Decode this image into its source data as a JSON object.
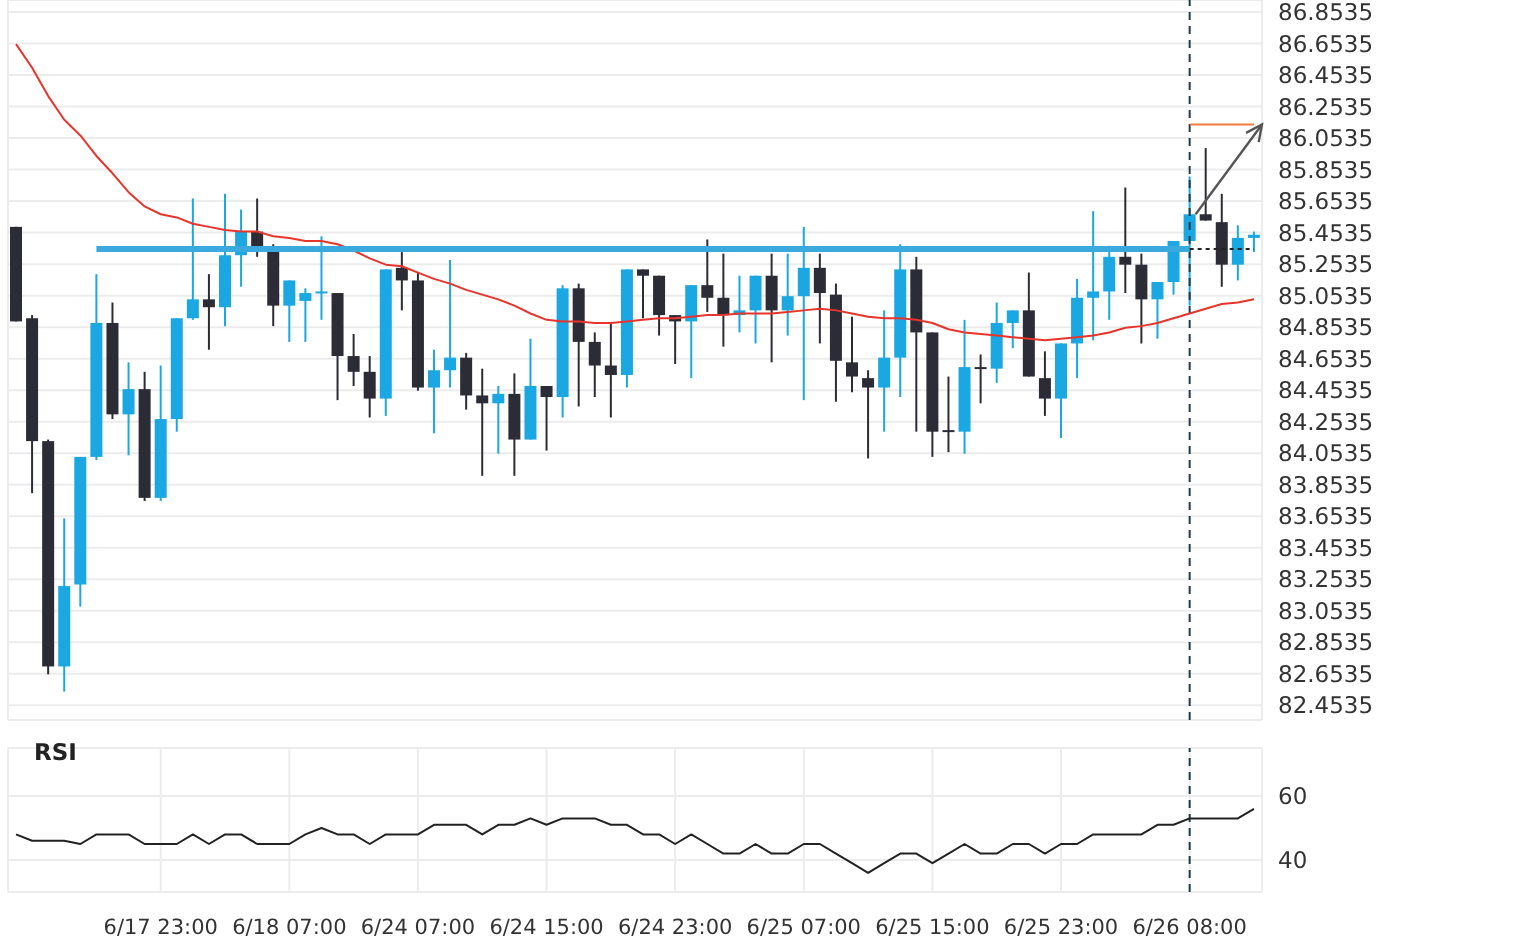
{
  "chart_data": [
    {
      "type": "candlestick",
      "categories": [
        null,
        null,
        null,
        null,
        null,
        null,
        null,
        null,
        null,
        "6/17 23:00",
        null,
        null,
        null,
        null,
        null,
        null,
        null,
        "6/18 07:00",
        null,
        null,
        null,
        null,
        null,
        null,
        null,
        "6/24 07:00",
        null,
        null,
        null,
        null,
        null,
        null,
        null,
        "6/24 15:00",
        null,
        null,
        null,
        null,
        null,
        null,
        null,
        "6/24 23:00",
        null,
        null,
        null,
        null,
        null,
        null,
        null,
        "6/25 07:00",
        null,
        null,
        null,
        null,
        null,
        null,
        null,
        "6/25 15:00",
        null,
        null,
        null,
        null,
        null,
        null,
        null,
        "6/25 23:00",
        null,
        null,
        null,
        null,
        null,
        null,
        null,
        "6/26 08:00",
        null,
        null,
        null,
        null
      ],
      "ohlc": [
        [
          85.49,
          85.49,
          84.89,
          84.89
        ],
        [
          84.91,
          84.93,
          83.8,
          84.13
        ],
        [
          84.13,
          84.14,
          82.65,
          82.7
        ],
        [
          82.7,
          83.64,
          82.54,
          83.21
        ],
        [
          83.22,
          84.03,
          83.08,
          84.03
        ],
        [
          84.03,
          85.19,
          84.01,
          84.88
        ],
        [
          84.88,
          85.01,
          84.27,
          84.3
        ],
        [
          84.3,
          84.63,
          84.04,
          84.46
        ],
        [
          84.46,
          84.57,
          83.75,
          83.77
        ],
        [
          83.77,
          84.61,
          83.75,
          84.27
        ],
        [
          84.27,
          84.91,
          84.19,
          84.91
        ],
        [
          84.91,
          85.67,
          84.9,
          85.03
        ],
        [
          85.03,
          85.19,
          84.71,
          84.98
        ],
        [
          84.98,
          85.7,
          84.86,
          85.31
        ],
        [
          85.31,
          85.6,
          85.11,
          85.46
        ],
        [
          85.46,
          85.67,
          85.3,
          85.36
        ],
        [
          85.36,
          85.38,
          84.86,
          84.99
        ],
        [
          84.99,
          85.15,
          84.76,
          85.15
        ],
        [
          85.02,
          85.1,
          84.76,
          85.07
        ],
        [
          85.07,
          85.43,
          84.9,
          85.08
        ],
        [
          85.07,
          85.07,
          84.39,
          84.67
        ],
        [
          84.67,
          84.81,
          84.48,
          84.57
        ],
        [
          84.57,
          84.67,
          84.28,
          84.4
        ],
        [
          84.4,
          85.22,
          84.29,
          85.22
        ],
        [
          85.23,
          85.33,
          84.96,
          85.15
        ],
        [
          85.15,
          85.2,
          84.45,
          84.47
        ],
        [
          84.47,
          84.71,
          84.18,
          84.58
        ],
        [
          84.58,
          85.28,
          84.47,
          84.66
        ],
        [
          84.66,
          84.69,
          84.33,
          84.42
        ],
        [
          84.42,
          84.59,
          83.91,
          84.37
        ],
        [
          84.37,
          84.48,
          84.05,
          84.43
        ],
        [
          84.43,
          84.56,
          83.91,
          84.14
        ],
        [
          84.14,
          84.78,
          84.14,
          84.48
        ],
        [
          84.48,
          84.48,
          84.07,
          84.41
        ],
        [
          84.41,
          85.12,
          84.28,
          85.1
        ],
        [
          85.1,
          85.13,
          84.35,
          84.76
        ],
        [
          84.76,
          84.82,
          84.41,
          84.61
        ],
        [
          84.61,
          84.88,
          84.28,
          84.55
        ],
        [
          84.55,
          85.22,
          84.47,
          85.22
        ],
        [
          85.22,
          85.22,
          84.91,
          85.18
        ],
        [
          85.18,
          85.18,
          84.8,
          84.93
        ],
        [
          84.93,
          84.93,
          84.62,
          84.89
        ],
        [
          84.89,
          85.12,
          84.53,
          85.12
        ],
        [
          85.12,
          85.41,
          84.95,
          85.04
        ],
        [
          85.04,
          85.32,
          84.73,
          84.93
        ],
        [
          84.93,
          85.18,
          84.82,
          84.96
        ],
        [
          84.96,
          85.18,
          84.75,
          85.18
        ],
        [
          85.18,
          85.32,
          84.63,
          84.96
        ],
        [
          84.96,
          85.32,
          84.8,
          85.05
        ],
        [
          85.05,
          85.49,
          84.39,
          85.23
        ],
        [
          85.23,
          85.32,
          84.75,
          85.07
        ],
        [
          85.06,
          85.13,
          84.38,
          84.64
        ],
        [
          84.63,
          84.92,
          84.44,
          84.54
        ],
        [
          84.53,
          84.58,
          84.02,
          84.47
        ],
        [
          84.47,
          84.96,
          84.19,
          84.66
        ],
        [
          84.66,
          85.38,
          84.41,
          85.22
        ],
        [
          85.22,
          85.3,
          84.19,
          84.82
        ],
        [
          84.82,
          84.82,
          84.03,
          84.19
        ],
        [
          84.2,
          84.54,
          84.06,
          84.19
        ],
        [
          84.19,
          84.9,
          84.05,
          84.6
        ],
        [
          84.6,
          84.68,
          84.37,
          84.59
        ],
        [
          84.59,
          85.01,
          84.5,
          84.88
        ],
        [
          84.88,
          84.96,
          84.72,
          84.96
        ],
        [
          84.96,
          85.2,
          84.54,
          84.54
        ],
        [
          84.53,
          84.7,
          84.29,
          84.4
        ],
        [
          84.4,
          84.75,
          84.15,
          84.75
        ],
        [
          84.75,
          85.16,
          84.53,
          85.04
        ],
        [
          85.04,
          85.59,
          84.77,
          85.08
        ],
        [
          85.08,
          85.37,
          84.9,
          85.3
        ],
        [
          85.3,
          85.74,
          85.07,
          85.25
        ],
        [
          85.25,
          85.32,
          84.75,
          85.03
        ],
        [
          85.03,
          85.14,
          84.78,
          85.14
        ],
        [
          85.14,
          85.4,
          85.06,
          85.4
        ],
        [
          85.4,
          85.81,
          84.99,
          85.57
        ],
        [
          85.57,
          85.99,
          85.53,
          85.53
        ],
        [
          85.52,
          85.7,
          85.11,
          85.25
        ],
        [
          85.25,
          85.5,
          85.15,
          85.42
        ],
        [
          85.42,
          85.46,
          85.33,
          85.44
        ]
      ],
      "colors": [
        "#2b2c36",
        "#2b2c36",
        "#2b2c36",
        "#1ba7e1",
        "#1ba7e1",
        "#1ba7e1",
        "#2b2c36",
        "#1ba7e1",
        "#2b2c36",
        "#1ba7e1",
        "#1ba7e1",
        "#1ba7e1",
        "#2b2c36",
        "#1ba7e1",
        "#1ba7e1",
        "#2b2c36",
        "#2b2c36",
        "#1ba7e1",
        "#1ba7e1",
        "#1ba7e1",
        "#2b2c36",
        "#2b2c36",
        "#2b2c36",
        "#1ba7e1",
        "#2b2c36",
        "#2b2c36",
        "#1ba7e1",
        "#1ba7e1",
        "#2b2c36",
        "#2b2c36",
        "#1ba7e1",
        "#2b2c36",
        "#1ba7e1",
        "#2b2c36",
        "#1ba7e1",
        "#2b2c36",
        "#2b2c36",
        "#2b2c36",
        "#1ba7e1",
        "#2b2c36",
        "#2b2c36",
        "#2b2c36",
        "#1ba7e1",
        "#2b2c36",
        "#2b2c36",
        "#1ba7e1",
        "#1ba7e1",
        "#2b2c36",
        "#1ba7e1",
        "#1ba7e1",
        "#2b2c36",
        "#2b2c36",
        "#2b2c36",
        "#2b2c36",
        "#1ba7e1",
        "#1ba7e1",
        "#2b2c36",
        "#2b2c36",
        "#2b2c36",
        "#1ba7e1",
        "#2b2c36",
        "#1ba7e1",
        "#1ba7e1",
        "#2b2c36",
        "#2b2c36",
        "#1ba7e1",
        "#1ba7e1",
        "#1ba7e1",
        "#1ba7e1",
        "#2b2c36",
        "#2b2c36",
        "#1ba7e1",
        "#1ba7e1",
        "#1ba7e1",
        "#2b2c36",
        "#2b2c36",
        "#1ba7e1",
        "#1ba7e1"
      ],
      "series": [
        {
          "type": "line",
          "color": "#e8342b",
          "values": [
            86.65,
            86.5,
            86.32,
            86.17,
            86.07,
            85.94,
            85.83,
            85.71,
            85.62,
            85.57,
            85.55,
            85.51,
            85.49,
            85.47,
            85.46,
            85.46,
            85.43,
            85.42,
            85.4,
            85.4,
            85.38,
            85.34,
            85.29,
            85.25,
            85.24,
            85.2,
            85.16,
            85.13,
            85.09,
            85.06,
            85.03,
            84.99,
            84.94,
            84.9,
            84.89,
            84.89,
            84.88,
            84.88,
            84.89,
            84.9,
            84.91,
            84.91,
            84.92,
            84.93,
            84.93,
            84.94,
            84.94,
            84.94,
            84.95,
            84.96,
            84.97,
            84.96,
            84.94,
            84.92,
            84.91,
            84.91,
            84.9,
            84.88,
            84.84,
            84.82,
            84.81,
            84.8,
            84.79,
            84.78,
            84.77,
            84.78,
            84.79,
            84.8,
            84.82,
            84.85,
            84.86,
            84.88,
            84.91,
            84.94,
            84.97,
            85.0,
            85.01,
            85.03
          ]
        },
        {
          "type": "line",
          "color": "#3aa9de",
          "values": [
            null,
            null,
            null,
            null,
            null,
            85.35,
            85.35,
            85.35,
            85.35,
            85.35,
            85.35,
            85.35,
            85.35,
            85.35,
            85.35,
            85.35,
            85.35,
            85.35,
            85.35,
            85.35,
            85.35,
            85.35,
            85.35,
            85.35,
            85.35,
            85.35,
            85.35,
            85.35,
            85.35,
            85.35,
            85.35,
            85.35,
            85.35,
            85.35,
            85.35,
            85.35,
            85.35,
            85.35,
            85.35,
            85.35,
            85.35,
            85.35,
            85.35,
            85.35,
            85.35,
            85.35,
            85.35,
            85.35,
            85.35,
            85.35,
            85.35,
            85.35,
            85.35,
            85.35,
            85.35,
            85.35,
            85.35,
            85.35,
            85.35,
            85.35,
            85.35,
            85.35,
            85.35,
            85.35,
            85.35,
            85.35,
            85.35,
            85.35,
            85.35,
            85.35,
            85.35,
            85.35,
            85.35,
            85.35,
            null,
            null,
            null,
            null
          ]
        },
        {
          "type": "line",
          "color": "#222222",
          "line_style": "dotted",
          "values": [
            null,
            null,
            null,
            null,
            null,
            null,
            null,
            null,
            null,
            null,
            null,
            null,
            null,
            null,
            null,
            null,
            null,
            null,
            null,
            null,
            null,
            null,
            null,
            null,
            null,
            null,
            null,
            null,
            null,
            null,
            null,
            null,
            null,
            null,
            null,
            null,
            null,
            null,
            null,
            null,
            null,
            null,
            null,
            null,
            null,
            null,
            null,
            null,
            null,
            null,
            null,
            null,
            null,
            null,
            null,
            null,
            null,
            null,
            null,
            null,
            null,
            null,
            null,
            null,
            null,
            null,
            null,
            null,
            null,
            null,
            null,
            null,
            null,
            85.35,
            85.35,
            85.35,
            85.35,
            85.35
          ]
        },
        {
          "type": "line",
          "color": "#f07d3c",
          "values": [
            null,
            null,
            null,
            null,
            null,
            null,
            null,
            null,
            null,
            null,
            null,
            null,
            null,
            null,
            null,
            null,
            null,
            null,
            null,
            null,
            null,
            null,
            null,
            null,
            null,
            null,
            null,
            null,
            null,
            null,
            null,
            null,
            null,
            null,
            null,
            null,
            null,
            null,
            null,
            null,
            null,
            null,
            null,
            null,
            null,
            null,
            null,
            null,
            null,
            null,
            null,
            null,
            null,
            null,
            null,
            null,
            null,
            null,
            null,
            null,
            null,
            null,
            null,
            null,
            null,
            null,
            null,
            null,
            null,
            null,
            null,
            null,
            null,
            86.14,
            86.14,
            86.14,
            86.14,
            86.14
          ]
        }
      ],
      "ylim": [
        82.36,
        86.93
      ],
      "yticks": [
        82.4535,
        82.6535,
        82.8535,
        83.0535,
        83.2535,
        83.4535,
        83.6535,
        83.8535,
        84.0535,
        84.2535,
        84.4535,
        84.6535,
        84.8535,
        85.0535,
        85.2535,
        85.4535,
        85.6535,
        85.8535,
        86.0535,
        86.2535,
        86.4535,
        86.6535,
        86.8535
      ],
      "grid": true,
      "tick_labels": "y",
      "marker": "none",
      "ref_lines": [
        {
          "axis": "x",
          "value": "6/26 08:00",
          "color": "#1d3b4a",
          "line_style": "dashed"
        }
      ]
    },
    {
      "type": "line",
      "title": "RSI",
      "categories": [
        null,
        null,
        null,
        null,
        null,
        null,
        null,
        null,
        null,
        "6/17 23:00",
        null,
        null,
        null,
        null,
        null,
        null,
        null,
        "6/18 07:00",
        null,
        null,
        null,
        null,
        null,
        null,
        null,
        "6/24 07:00",
        null,
        null,
        null,
        null,
        null,
        null,
        null,
        "6/24 15:00",
        null,
        null,
        null,
        null,
        null,
        null,
        null,
        "6/24 23:00",
        null,
        null,
        null,
        null,
        null,
        null,
        null,
        "6/25 07:00",
        null,
        null,
        null,
        null,
        null,
        null,
        null,
        "6/25 15:00",
        null,
        null,
        null,
        null,
        null,
        null,
        null,
        "6/25 23:00",
        null,
        null,
        null,
        null,
        null,
        null,
        null,
        "6/26 08:00",
        null,
        null,
        null,
        null
      ],
      "series": [
        {
          "color": "#222222",
          "values": [
            48,
            46,
            46,
            46,
            45,
            48,
            48,
            48,
            45,
            45,
            45,
            48,
            45,
            48,
            48,
            45,
            45,
            45,
            48,
            50,
            48,
            48,
            45,
            48,
            48,
            48,
            51,
            51,
            51,
            48,
            51,
            51,
            53,
            51,
            53,
            53,
            53,
            51,
            51,
            48,
            48,
            45,
            48,
            45,
            42,
            42,
            45,
            42,
            42,
            45,
            45,
            42,
            39,
            36,
            39,
            42,
            42,
            39,
            42,
            45,
            42,
            42,
            45,
            45,
            42,
            45,
            45,
            48,
            48,
            48,
            48,
            51,
            51,
            53,
            53,
            53,
            53,
            56
          ]
        }
      ],
      "ylim": [
        30,
        75
      ],
      "yticks": [
        40,
        60
      ],
      "grid": true,
      "marker": "none",
      "ref_lines": [
        {
          "axis": "x",
          "value": "6/26 08:00",
          "color": "#1d3b4a",
          "line_style": "dashed"
        }
      ]
    }
  ]
}
